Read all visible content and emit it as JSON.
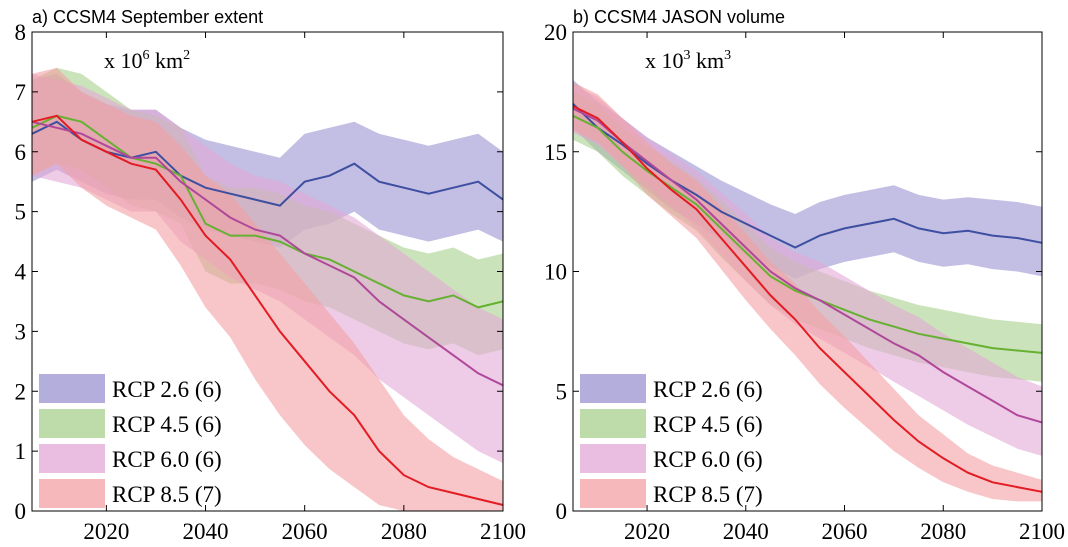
{
  "chart_data": [
    {
      "type": "line",
      "title": "a) CCSM4 September extent",
      "unit": {
        "prefix": "x 10",
        "exp": "6",
        "mid": " km",
        "exp2": "2"
      },
      "xlim": [
        2005,
        2100
      ],
      "ylim": [
        0,
        8
      ],
      "xticks": [
        2020,
        2040,
        2060,
        2080,
        2100
      ],
      "yticks": [
        0,
        1,
        2,
        3,
        4,
        5,
        6,
        7,
        8
      ],
      "legend": {
        "position": "bottom-left"
      },
      "series": [
        {
          "name": "RCP 2.6 (6)",
          "color": "#3d4fa0",
          "band_color": "#9b93d0",
          "x": [
            2005,
            2010,
            2015,
            2020,
            2025,
            2030,
            2035,
            2040,
            2045,
            2050,
            2055,
            2060,
            2065,
            2070,
            2075,
            2080,
            2085,
            2090,
            2095,
            2100
          ],
          "y": [
            6.3,
            6.5,
            6.2,
            6.0,
            5.9,
            6.0,
            5.6,
            5.4,
            5.3,
            5.2,
            5.1,
            5.5,
            5.6,
            5.8,
            5.5,
            5.4,
            5.3,
            5.4,
            5.5,
            5.2
          ],
          "lower": [
            5.5,
            5.7,
            5.5,
            5.3,
            5.2,
            5.2,
            4.9,
            4.7,
            4.6,
            4.5,
            4.4,
            4.7,
            4.8,
            5.0,
            4.7,
            4.6,
            4.5,
            4.6,
            4.7,
            4.5
          ],
          "upper": [
            7.2,
            7.3,
            7.0,
            6.8,
            6.7,
            6.7,
            6.4,
            6.2,
            6.1,
            6.0,
            5.9,
            6.3,
            6.4,
            6.5,
            6.3,
            6.2,
            6.1,
            6.2,
            6.3,
            6.0
          ]
        },
        {
          "name": "RCP 4.5 (6)",
          "color": "#66b032",
          "band_color": "#a8d08d",
          "x": [
            2005,
            2010,
            2015,
            2020,
            2025,
            2030,
            2035,
            2040,
            2045,
            2050,
            2055,
            2060,
            2065,
            2070,
            2075,
            2080,
            2085,
            2090,
            2095,
            2100
          ],
          "y": [
            6.4,
            6.6,
            6.5,
            6.2,
            5.9,
            5.8,
            5.6,
            4.8,
            4.6,
            4.6,
            4.5,
            4.3,
            4.2,
            4.0,
            3.8,
            3.6,
            3.5,
            3.6,
            3.4,
            3.5
          ],
          "lower": [
            5.6,
            5.8,
            5.7,
            5.4,
            5.1,
            5.0,
            4.8,
            4.0,
            3.8,
            3.8,
            3.7,
            3.5,
            3.4,
            3.2,
            3.0,
            2.8,
            2.7,
            2.8,
            2.6,
            2.7
          ],
          "upper": [
            7.2,
            7.4,
            7.3,
            7.0,
            6.7,
            6.6,
            6.4,
            5.6,
            5.4,
            5.4,
            5.3,
            5.1,
            5.0,
            4.8,
            4.6,
            4.4,
            4.3,
            4.4,
            4.2,
            4.3
          ]
        },
        {
          "name": "RCP 6.0 (6)",
          "color": "#b0489a",
          "band_color": "#e2a8d6",
          "x": [
            2005,
            2010,
            2015,
            2020,
            2025,
            2030,
            2035,
            2040,
            2045,
            2050,
            2055,
            2060,
            2065,
            2070,
            2075,
            2080,
            2085,
            2090,
            2095,
            2100
          ],
          "y": [
            6.5,
            6.4,
            6.3,
            6.1,
            5.9,
            5.9,
            5.5,
            5.2,
            4.9,
            4.7,
            4.6,
            4.3,
            4.1,
            3.9,
            3.5,
            3.2,
            2.9,
            2.6,
            2.3,
            2.1
          ],
          "lower": [
            5.6,
            5.5,
            5.4,
            5.2,
            5.0,
            5.0,
            4.5,
            4.2,
            3.9,
            3.7,
            3.5,
            3.2,
            2.9,
            2.6,
            2.2,
            1.9,
            1.6,
            1.3,
            1.0,
            0.8
          ],
          "upper": [
            7.3,
            7.2,
            7.1,
            6.9,
            6.7,
            6.7,
            6.4,
            6.1,
            5.8,
            5.6,
            5.5,
            5.3,
            5.1,
            4.9,
            4.6,
            4.3,
            4.0,
            3.7,
            3.4,
            3.2
          ]
        },
        {
          "name": "RCP 8.5 (7)",
          "color": "#e31b23",
          "band_color": "#f4a0a4",
          "x": [
            2005,
            2010,
            2015,
            2020,
            2025,
            2030,
            2035,
            2040,
            2045,
            2050,
            2055,
            2060,
            2065,
            2070,
            2075,
            2080,
            2085,
            2090,
            2095,
            2100
          ],
          "y": [
            6.5,
            6.6,
            6.2,
            6.0,
            5.8,
            5.7,
            5.2,
            4.6,
            4.2,
            3.6,
            3.0,
            2.5,
            2.0,
            1.6,
            1.0,
            0.6,
            0.4,
            0.3,
            0.2,
            0.1
          ],
          "lower": [
            5.6,
            5.8,
            5.4,
            5.1,
            4.9,
            4.7,
            4.1,
            3.4,
            2.9,
            2.2,
            1.6,
            1.1,
            0.7,
            0.4,
            0.1,
            0.0,
            0.0,
            0.0,
            0.0,
            0.0
          ],
          "upper": [
            7.3,
            7.4,
            7.0,
            6.8,
            6.6,
            6.5,
            6.1,
            5.6,
            5.3,
            4.8,
            4.3,
            3.8,
            3.3,
            2.8,
            2.2,
            1.6,
            1.2,
            0.9,
            0.7,
            0.5
          ]
        }
      ]
    },
    {
      "type": "line",
      "title": "b) CCSM4 JASON volume",
      "unit": {
        "prefix": "x 10",
        "exp": "3",
        "mid": " km",
        "exp2": "3"
      },
      "xlim": [
        2005,
        2100
      ],
      "ylim": [
        0,
        20
      ],
      "xticks": [
        2020,
        2040,
        2060,
        2080,
        2100
      ],
      "yticks": [
        0,
        5,
        10,
        15,
        20
      ],
      "legend": {
        "position": "bottom-left"
      },
      "series": [
        {
          "name": "RCP 2.6 (6)",
          "color": "#3d4fa0",
          "band_color": "#9b93d0",
          "x": [
            2005,
            2010,
            2015,
            2020,
            2025,
            2030,
            2035,
            2040,
            2045,
            2050,
            2055,
            2060,
            2065,
            2070,
            2075,
            2080,
            2085,
            2090,
            2095,
            2100
          ],
          "y": [
            17.0,
            16.0,
            15.3,
            14.5,
            13.8,
            13.2,
            12.5,
            12.0,
            11.5,
            11.0,
            11.5,
            11.8,
            12.0,
            12.2,
            11.8,
            11.6,
            11.7,
            11.5,
            11.4,
            11.2
          ],
          "lower": [
            16.0,
            15.0,
            14.2,
            13.4,
            12.6,
            12.0,
            11.3,
            10.7,
            10.2,
            9.7,
            10.1,
            10.4,
            10.6,
            10.8,
            10.4,
            10.2,
            10.3,
            10.1,
            10.0,
            9.8
          ],
          "upper": [
            18.0,
            17.1,
            16.4,
            15.6,
            15.0,
            14.4,
            13.8,
            13.3,
            12.8,
            12.4,
            12.9,
            13.2,
            13.4,
            13.6,
            13.2,
            13.0,
            13.1,
            13.0,
            12.9,
            12.7
          ]
        },
        {
          "name": "RCP 4.5 (6)",
          "color": "#66b032",
          "band_color": "#a8d08d",
          "x": [
            2005,
            2010,
            2015,
            2020,
            2025,
            2030,
            2035,
            2040,
            2045,
            2050,
            2055,
            2060,
            2065,
            2070,
            2075,
            2080,
            2085,
            2090,
            2095,
            2100
          ],
          "y": [
            16.5,
            16.0,
            15.0,
            14.2,
            13.5,
            12.8,
            11.8,
            10.8,
            9.8,
            9.2,
            8.8,
            8.4,
            8.0,
            7.7,
            7.4,
            7.2,
            7.0,
            6.8,
            6.7,
            6.6
          ],
          "lower": [
            15.5,
            15.0,
            14.0,
            13.2,
            12.4,
            11.7,
            10.6,
            9.6,
            8.6,
            8.0,
            7.6,
            7.2,
            6.8,
            6.5,
            6.2,
            6.0,
            5.8,
            5.6,
            5.5,
            5.4
          ],
          "upper": [
            17.5,
            17.0,
            16.0,
            15.2,
            14.6,
            13.9,
            13.0,
            12.0,
            11.0,
            10.4,
            10.0,
            9.6,
            9.2,
            8.9,
            8.6,
            8.4,
            8.2,
            8.0,
            7.9,
            7.8
          ]
        },
        {
          "name": "RCP 6.0 (6)",
          "color": "#b0489a",
          "band_color": "#e2a8d6",
          "x": [
            2005,
            2010,
            2015,
            2020,
            2025,
            2030,
            2035,
            2040,
            2045,
            2050,
            2055,
            2060,
            2065,
            2070,
            2075,
            2080,
            2085,
            2090,
            2095,
            2100
          ],
          "y": [
            16.8,
            16.3,
            15.4,
            14.6,
            13.8,
            13.0,
            12.0,
            11.0,
            10.0,
            9.3,
            8.8,
            8.2,
            7.6,
            7.0,
            6.5,
            5.8,
            5.2,
            4.6,
            4.0,
            3.7
          ],
          "lower": [
            15.8,
            15.3,
            14.4,
            13.6,
            12.7,
            11.8,
            10.7,
            9.6,
            8.6,
            7.8,
            7.2,
            6.6,
            6.0,
            5.4,
            4.8,
            4.2,
            3.6,
            3.1,
            2.6,
            2.3
          ],
          "upper": [
            17.8,
            17.3,
            16.4,
            15.6,
            14.9,
            14.2,
            13.3,
            12.4,
            11.4,
            10.8,
            10.4,
            9.8,
            9.2,
            8.6,
            8.1,
            7.4,
            6.8,
            6.2,
            5.6,
            5.2
          ]
        },
        {
          "name": "RCP 8.5 (7)",
          "color": "#e31b23",
          "band_color": "#f4a0a4",
          "x": [
            2005,
            2010,
            2015,
            2020,
            2025,
            2030,
            2035,
            2040,
            2045,
            2050,
            2055,
            2060,
            2065,
            2070,
            2075,
            2080,
            2085,
            2090,
            2095,
            2100
          ],
          "y": [
            16.9,
            16.4,
            15.4,
            14.3,
            13.4,
            12.6,
            11.4,
            10.2,
            9.0,
            8.0,
            6.8,
            5.8,
            4.8,
            3.8,
            2.9,
            2.2,
            1.6,
            1.2,
            1.0,
            0.8
          ],
          "lower": [
            15.9,
            15.4,
            14.4,
            13.2,
            12.3,
            11.4,
            10.1,
            8.8,
            7.6,
            6.5,
            5.3,
            4.3,
            3.4,
            2.5,
            1.8,
            1.2,
            0.8,
            0.5,
            0.4,
            0.4
          ],
          "upper": [
            17.9,
            17.4,
            16.4,
            15.4,
            14.5,
            13.8,
            12.7,
            11.6,
            10.4,
            9.5,
            8.3,
            7.3,
            6.2,
            5.1,
            4.0,
            3.2,
            2.4,
            1.9,
            1.6,
            1.3
          ]
        }
      ]
    }
  ]
}
